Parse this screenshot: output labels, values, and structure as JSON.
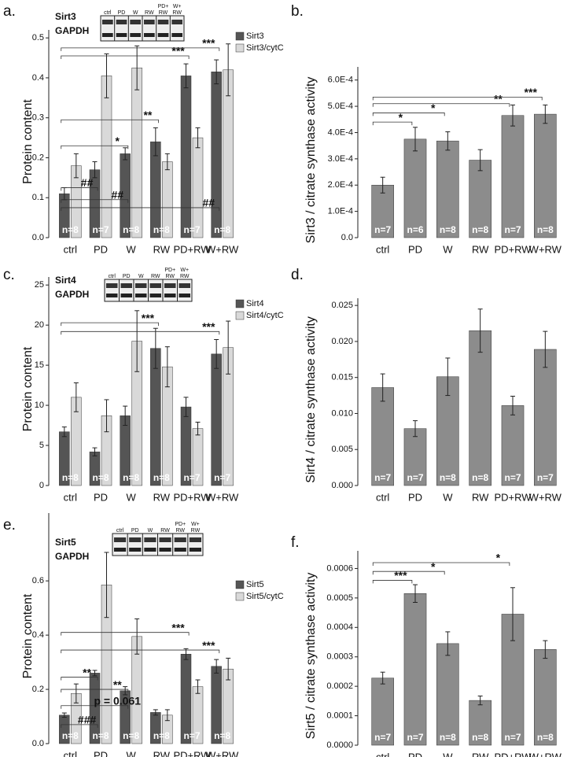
{
  "chart_data": [
    {
      "type": "bar",
      "panel": "a.",
      "ylabel": "Protein content",
      "categories": [
        "ctrl",
        "PD",
        "W",
        "RW",
        "PD+RW",
        "W+RW"
      ],
      "series": [
        {
          "name": "Sirt3",
          "color": "#555555",
          "values": [
            0.11,
            0.17,
            0.21,
            0.24,
            0.405,
            0.415
          ],
          "errors": [
            0.015,
            0.02,
            0.015,
            0.035,
            0.03,
            0.03
          ]
        },
        {
          "name": "Sirt3/cytC",
          "color": "#d9d9d9",
          "values": [
            0.18,
            0.405,
            0.425,
            0.19,
            0.25,
            0.42
          ],
          "errors": [
            0.03,
            0.055,
            0.055,
            0.02,
            0.025,
            0.065
          ]
        }
      ],
      "n_labels": [
        "n=8",
        "n=7",
        "n=8",
        "n=8",
        "n=7",
        "n=8"
      ],
      "ylim": [
        0,
        0.52
      ],
      "yticks": [
        {
          "value": 0,
          "label": "0.0"
        },
        0.1,
        0.2,
        0.3,
        0.4,
        0.5
      ],
      "annotations": [
        "*",
        "**",
        "***",
        "***",
        "##",
        "##",
        "##"
      ],
      "blot": {
        "protein": "Sirt3",
        "loading": "GAPDH",
        "lanes": [
          [
            "ctrl"
          ],
          [
            "PD"
          ],
          [
            "W"
          ],
          [
            "RW"
          ],
          [
            "PD+",
            "RW"
          ],
          [
            "W+",
            "RW"
          ]
        ]
      }
    },
    {
      "type": "bar",
      "panel": "b.",
      "ylabel": "Sirt3 / citrate synthase activity",
      "categories": [
        "ctrl",
        "PD",
        "W",
        "RW",
        "PD+RW",
        "W+RW"
      ],
      "color": "#8c8c8c",
      "values": [
        0.0002,
        0.000375,
        0.000368,
        0.000295,
        0.000465,
        0.00047
      ],
      "errors": [
        3e-05,
        4.5e-05,
        3.5e-05,
        4e-05,
        4e-05,
        3.5e-05
      ],
      "n_labels": [
        "n=7",
        "n=6",
        "n=8",
        "n=8",
        "n=7",
        "n=8"
      ],
      "ylim": [
        0,
        0.00065
      ],
      "yticks": [
        {
          "value": 0,
          "label": "0.0"
        },
        {
          "value": 0.0001,
          "label": "1.0E-4"
        },
        {
          "value": 0.0002,
          "label": "2.0E-4"
        },
        {
          "value": 0.0003,
          "label": "3.0E-4"
        },
        {
          "value": 0.0004,
          "label": "4.0E-4"
        },
        {
          "value": 0.0005,
          "label": "5.0E-4"
        },
        {
          "value": 0.0006,
          "label": "6.0E-4"
        }
      ],
      "annotations": [
        "*",
        "*",
        "**",
        "***"
      ]
    },
    {
      "type": "bar",
      "panel": "c.",
      "ylabel": "Protein content",
      "categories": [
        "ctrl",
        "PD",
        "W",
        "RW",
        "PD+RW",
        "W+RW"
      ],
      "series": [
        {
          "name": "Sirt4",
          "color": "#555555",
          "values": [
            6.7,
            4.2,
            8.7,
            17.1,
            9.8,
            16.4
          ],
          "errors": [
            0.6,
            0.5,
            1.2,
            2.5,
            1.2,
            1.8
          ]
        },
        {
          "name": "Sirt4/cytC",
          "color": "#d9d9d9",
          "values": [
            11,
            8.7,
            18,
            14.8,
            7.1,
            17.2
          ],
          "errors": [
            1.8,
            2,
            3.8,
            2.5,
            0.8,
            3.3
          ]
        }
      ],
      "n_labels": [
        "n=8",
        "n=8",
        "n=8",
        "n=8",
        "n=7",
        "n=7"
      ],
      "ylim": [
        0,
        26
      ],
      "yticks": [
        0,
        5,
        10,
        15,
        20,
        25
      ],
      "annotations": [
        "***",
        "***"
      ],
      "blot": {
        "protein": "Sirt4",
        "loading": "GAPDH",
        "lanes": [
          [
            "ctrl"
          ],
          [
            "PD"
          ],
          [
            "W"
          ],
          [
            "RW"
          ],
          [
            "PD+",
            "RW"
          ],
          [
            "W+",
            "RW"
          ]
        ]
      }
    },
    {
      "type": "bar",
      "panel": "d.",
      "ylabel": "Sirt4 / citrate synthase activity",
      "categories": [
        "ctrl",
        "PD",
        "W",
        "RW",
        "PD+RW",
        "W+RW"
      ],
      "color": "#8c8c8c",
      "values": [
        0.0136,
        0.0079,
        0.0151,
        0.0215,
        0.0111,
        0.0189
      ],
      "errors": [
        0.0019,
        0.0011,
        0.0026,
        0.003,
        0.0013,
        0.0025
      ],
      "n_labels": [
        "n=7",
        "n=7",
        "n=8",
        "n=8",
        "n=7",
        "n=7"
      ],
      "ylim": [
        0,
        0.026
      ],
      "yticks": [
        {
          "value": 0,
          "label": "0.000"
        },
        0.005,
        {
          "value": 0.01,
          "label": "0.010"
        },
        0.015,
        {
          "value": 0.02,
          "label": "0.020"
        },
        0.025
      ]
    },
    {
      "type": "bar",
      "panel": "e.",
      "ylabel": "Protein content",
      "categories": [
        "ctrl",
        "PD",
        "W",
        "RW",
        "PD+RW",
        "W+RW"
      ],
      "series": [
        {
          "name": "Sirt5",
          "color": "#555555",
          "values": [
            0.105,
            0.26,
            0.195,
            0.115,
            0.33,
            0.285
          ],
          "errors": [
            0.008,
            0.01,
            0.015,
            0.01,
            0.02,
            0.025
          ]
        },
        {
          "name": "Sirt5/cytC",
          "color": "#d9d9d9",
          "values": [
            0.185,
            0.585,
            0.395,
            0.105,
            0.21,
            0.275
          ],
          "errors": [
            0.035,
            0.12,
            0.065,
            0.02,
            0.025,
            0.04
          ]
        }
      ],
      "n_labels": [
        "n=8",
        "n=8",
        "n=8",
        "n=8",
        "n=7",
        "n=8"
      ],
      "ylim": [
        0,
        0.85
      ],
      "yticks": [
        {
          "value": 0,
          "label": "0.0"
        },
        0.2,
        0.4,
        0.6
      ],
      "annotations": [
        "**",
        "**",
        "***",
        "***",
        "p = 0.061",
        "###"
      ],
      "blot": {
        "protein": "Sirt5",
        "loading": "GAPDH",
        "lanes": [
          [
            "ctrl"
          ],
          [
            "PD"
          ],
          [
            "W"
          ],
          [
            "RW"
          ],
          [
            "PD+",
            "RW"
          ],
          [
            "W+",
            "RW"
          ]
        ]
      }
    },
    {
      "type": "bar",
      "panel": "f.",
      "ylabel": "Sirt5 / citrate synthase activity",
      "categories": [
        "ctrl",
        "PD",
        "W",
        "RW",
        "PD+RW",
        "W+RW"
      ],
      "color": "#8c8c8c",
      "values": [
        0.000228,
        0.000515,
        0.000345,
        0.000152,
        0.000445,
        0.000325
      ],
      "errors": [
        2e-05,
        3e-05,
        4e-05,
        1.5e-05,
        9e-05,
        3e-05
      ],
      "n_labels": [
        "n=7",
        "n=7",
        "n=8",
        "n=8",
        "n=7",
        "n=8"
      ],
      "ylim": [
        0,
        0.00066
      ],
      "yticks": [
        {
          "value": 0,
          "label": "0.0000"
        },
        0.0001,
        0.0002,
        0.0003,
        0.0004,
        0.0005,
        0.0006
      ],
      "annotations": [
        "***",
        "*",
        "*"
      ]
    }
  ]
}
